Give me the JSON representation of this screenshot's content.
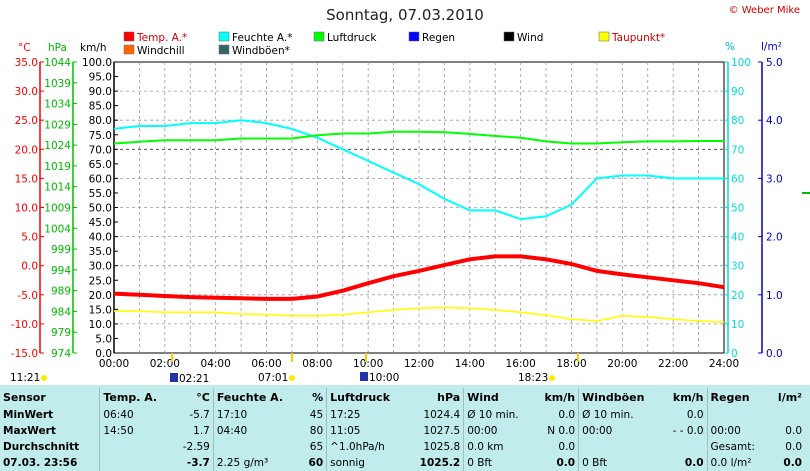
{
  "title": "Sonntag, 07.03.2010",
  "credit": "© Weber Mike",
  "colors": {
    "temp": "#ff0000",
    "humidity": "#00ffff",
    "pressure": "#00ff00",
    "rain": "#0000ff",
    "wind": "#000000",
    "dewpoint": "#ffff00",
    "windchill": "#ff6600",
    "gust": "#336666",
    "panel_bg": "#c0ecec"
  },
  "legend": [
    {
      "key": "temp",
      "label": "Temp. A.*"
    },
    {
      "key": "humidity",
      "label": "Feuchte A.*"
    },
    {
      "key": "pressure",
      "label": "Luftdruck"
    },
    {
      "key": "rain",
      "label": "Regen"
    },
    {
      "key": "wind",
      "label": "Wind"
    },
    {
      "key": "dewpoint",
      "label": "Taupunkt*"
    },
    {
      "key": "windchill",
      "label": "Windchill"
    },
    {
      "key": "gust",
      "label": "Windböen*"
    }
  ],
  "chart_data": {
    "type": "line",
    "title": "Sonntag, 07.03.2010",
    "axes": {
      "temp_c": {
        "unit": "°C",
        "min": -15,
        "max": 35,
        "ticks": [
          "35.0",
          "30.0",
          "25.0",
          "20.0",
          "15.0",
          "10.0",
          "5.0",
          "0.0",
          "-5.0",
          "-10.0",
          "-15.0"
        ]
      },
      "pressure_hpa": {
        "unit": "hPa",
        "min": 974,
        "max": 1044,
        "ticks": [
          "1044",
          "1039",
          "1034",
          "1029",
          "1024",
          "1019",
          "1014",
          "1009",
          "1004",
          "999",
          "994",
          "989",
          "984",
          "979",
          "974"
        ]
      },
      "wind_kmh": {
        "unit": "km/h",
        "min": 0,
        "max": 100,
        "ticks": [
          "100.0",
          "95.0",
          "90.0",
          "85.0",
          "80.0",
          "75.0",
          "70.0",
          "65.0",
          "60.0",
          "55.0",
          "50.0",
          "45.0",
          "40.0",
          "35.0",
          "30.0",
          "25.0",
          "20.0",
          "15.0",
          "10.0",
          "5.0",
          "0.0"
        ]
      },
      "humidity_pct": {
        "unit": "%",
        "min": 0,
        "max": 100,
        "ticks": [
          "100",
          "90",
          "80",
          "70",
          "60",
          "50",
          "40",
          "30",
          "20",
          "10",
          "0"
        ]
      },
      "rain_lm2": {
        "unit": "l/m²",
        "min": 0,
        "max": 5,
        "ticks": [
          "5.0",
          "4.0",
          "3.0",
          "2.0",
          "1.0",
          "0.0"
        ]
      },
      "x": {
        "ticks": [
          "00:00",
          "02:00",
          "04:00",
          "06:00",
          "08:00",
          "10:00",
          "12:00",
          "14:00",
          "16:00",
          "18:00",
          "20:00",
          "22:00",
          "24:00"
        ]
      }
    },
    "series": [
      {
        "key": "humidity",
        "name": "Feuchte A.*",
        "axis": "humidity_pct",
        "x": [
          0,
          1,
          2,
          3,
          4,
          5,
          6,
          7,
          8,
          9,
          10,
          11,
          12,
          13,
          14,
          15,
          16,
          17,
          18,
          19,
          20,
          21,
          22,
          23,
          24
        ],
        "y": [
          77,
          78,
          78,
          79,
          79,
          80,
          79,
          77,
          74,
          70,
          66,
          62,
          58,
          53,
          49,
          49,
          46,
          47,
          51,
          60,
          61,
          61,
          60,
          60,
          60
        ]
      },
      {
        "key": "pressure",
        "name": "Luftdruck",
        "axis": "pressure_hpa",
        "x": [
          0,
          1,
          2,
          3,
          4,
          5,
          6,
          7,
          8,
          9,
          10,
          11,
          12,
          13,
          14,
          15,
          16,
          17,
          18,
          19,
          20,
          21,
          22,
          23,
          24
        ],
        "y": [
          1024.4,
          1024.8,
          1025.2,
          1025.2,
          1025.2,
          1025.6,
          1025.6,
          1025.6,
          1026.4,
          1026.8,
          1026.8,
          1027.2,
          1027.2,
          1027.1,
          1026.7,
          1026.2,
          1025.8,
          1024.9,
          1024.4,
          1024.4,
          1024.7,
          1024.9,
          1024.9,
          1025.0,
          1025.0
        ]
      },
      {
        "key": "temp",
        "name": "Temp. A.*",
        "axis": "temp_c",
        "x": [
          0,
          1,
          2,
          3,
          4,
          5,
          6,
          7,
          8,
          9,
          10,
          11,
          12,
          13,
          14,
          15,
          16,
          17,
          18,
          19,
          20,
          21,
          22,
          23,
          24
        ],
        "y": [
          -4.8,
          -5.0,
          -5.2,
          -5.4,
          -5.5,
          -5.6,
          -5.7,
          -5.7,
          -5.3,
          -4.3,
          -3.0,
          -1.8,
          -0.9,
          0.1,
          1.1,
          1.6,
          1.6,
          1.1,
          0.3,
          -0.9,
          -1.5,
          -2.0,
          -2.5,
          -3.0,
          -3.7
        ]
      },
      {
        "key": "dewpoint",
        "name": "Taupunkt*",
        "axis": "temp_c",
        "x": [
          0,
          1,
          2,
          3,
          4,
          5,
          6,
          7,
          8,
          9,
          10,
          11,
          12,
          13,
          14,
          15,
          16,
          17,
          18,
          19,
          20,
          21,
          22,
          23,
          24
        ],
        "y": [
          -7.8,
          -7.8,
          -8.0,
          -8.0,
          -8.0,
          -8.3,
          -8.4,
          -8.6,
          -8.6,
          -8.4,
          -8.0,
          -7.6,
          -7.3,
          -7.2,
          -7.3,
          -7.6,
          -8.0,
          -8.5,
          -9.2,
          -9.5,
          -8.6,
          -8.8,
          -9.2,
          -9.5,
          -9.7
        ]
      }
    ],
    "markers": [
      "11:21",
      "02:21",
      "07:01",
      "10:00",
      "18:23"
    ]
  },
  "stats": {
    "headers": [
      "Sensor",
      "Temp. A.",
      "°C",
      "Feuchte A.",
      "%",
      "Luftdruck",
      "hPa",
      "Wind",
      "km/h",
      "Windböen",
      "km/h",
      "Regen",
      "l/m²"
    ],
    "rows": [
      [
        "MinWert",
        "06:40",
        "-5.7",
        "17:10",
        "45",
        "17:25",
        "1024.4",
        "Ø 10 min.",
        "0.0",
        "Ø 10 min.",
        "0.0",
        "",
        ""
      ],
      [
        "MaxWert",
        "14:50",
        "1.7",
        "04:40",
        "80",
        "11:05",
        "1027.5",
        "00:00",
        "N 0.0",
        "00:00",
        "- - 0.0",
        "00:00",
        "0.0"
      ],
      [
        "Durchschnitt",
        "",
        "-2.59",
        "",
        "65",
        "^1.0hPa/h",
        "1025.8",
        "0.0 km",
        "0.0",
        "",
        "",
        "Gesamt:",
        "0.0"
      ],
      [
        "07.03.  23:56",
        "",
        "-3.7",
        "2.25 g/m³",
        "60",
        "sonnig",
        "1025.2",
        "0 Bft",
        "0.0",
        "0 Bft",
        "0.0",
        "0.0 l/m²",
        "0.0"
      ]
    ]
  }
}
